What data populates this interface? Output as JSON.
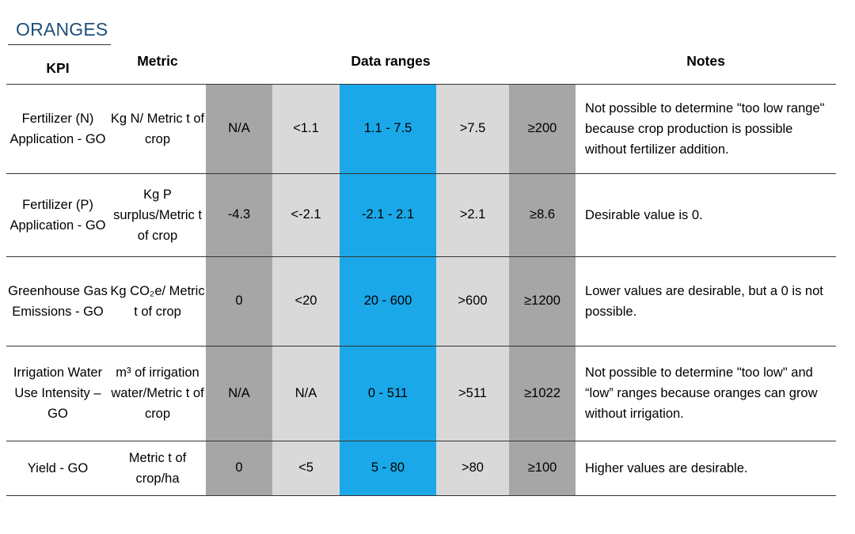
{
  "title": "ORANGES",
  "headers": {
    "kpi": "KPI",
    "metric": "Metric",
    "data_ranges": "Data ranges",
    "notes": "Notes"
  },
  "colors": {
    "title": "#1f4e79",
    "dark_range": "#a6a6a6",
    "light_range": "#d9d9d9",
    "target_range": "#1ba8e8"
  },
  "rows": [
    {
      "kpi": "Fertilizer (N) Application - GO",
      "metric": "Kg N/ Metric t of crop",
      "ranges": [
        "N/A",
        "<1.1",
        "1.1 - 7.5",
        ">7.5",
        "≥200"
      ],
      "notes": "Not possible to determine \"too low range\" because crop production is possible without fertilizer addition."
    },
    {
      "kpi": "Fertilizer (P) Application - GO",
      "metric": "Kg P surplus/Metric t of crop",
      "ranges": [
        "-4.3",
        "<-2.1",
        "-2.1 - 2.1",
        ">2.1",
        "≥8.6"
      ],
      "notes": "Desirable value is 0."
    },
    {
      "kpi": "Greenhouse Gas Emissions - GO",
      "metric": "Kg CO₂e/ Metric t of crop",
      "ranges": [
        "0",
        "<20",
        "20 - 600",
        ">600",
        "≥1200"
      ],
      "notes": "Lower values are desirable, but a 0 is not possible."
    },
    {
      "kpi": "Irrigation Water Use Intensity – GO",
      "metric": "m³ of irrigation water/Metric t of crop",
      "ranges": [
        "N/A",
        "N/A",
        "0 - 511",
        ">511",
        "≥1022"
      ],
      "notes": "Not possible to determine \"too low\" and “low” ranges because oranges can grow without irrigation."
    },
    {
      "kpi": "Yield - GO",
      "metric": "Metric t of crop/ha",
      "ranges": [
        "0",
        "<5",
        "5 - 80",
        ">80",
        "≥100"
      ],
      "notes": "Higher values are desirable."
    }
  ]
}
